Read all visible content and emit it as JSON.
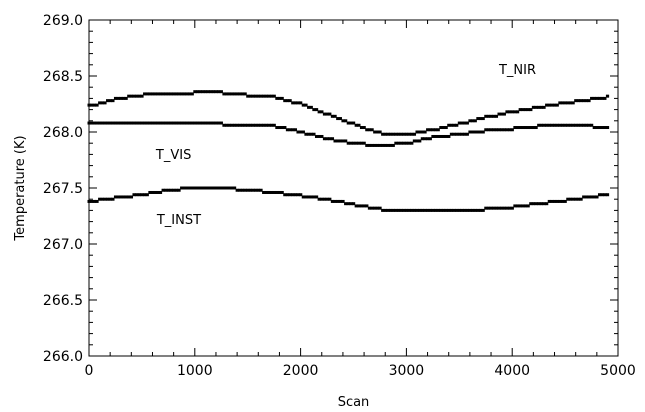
{
  "chart_data": {
    "type": "scatter",
    "title": "",
    "xlabel": "Scan",
    "ylabel": "Temperature (K)",
    "xlim": [
      0,
      5000
    ],
    "ylim": [
      266.0,
      269.0
    ],
    "x_ticks": [
      0,
      1000,
      2000,
      3000,
      4000,
      5000
    ],
    "y_ticks": [
      266.0,
      266.5,
      267.0,
      267.5,
      268.0,
      268.5,
      269.0
    ],
    "x_tick_labels": [
      "0",
      "1000",
      "2000",
      "3000",
      "4000",
      "5000"
    ],
    "y_tick_labels": [
      "266.0",
      "266.5",
      "267.0",
      "267.5",
      "268.0",
      "268.5",
      "269.0"
    ],
    "grid": false,
    "legend": "none",
    "series": [
      {
        "label": "T_NIR",
        "color": "#000000",
        "x": [
          0,
          250,
          500,
          750,
          1000,
          1250,
          1500,
          1750,
          2000,
          2250,
          2500,
          2750,
          3000,
          3250,
          3500,
          3750,
          4000,
          4250,
          4500,
          4750,
          4900
        ],
        "y": [
          268.23,
          268.29,
          268.33,
          268.34,
          268.35,
          268.35,
          268.33,
          268.31,
          268.25,
          268.16,
          268.07,
          267.99,
          267.97,
          268.02,
          268.07,
          268.13,
          268.18,
          268.22,
          268.26,
          268.29,
          268.31
        ]
      },
      {
        "label": "T_VIS",
        "color": "#000000",
        "x": [
          0,
          250,
          500,
          750,
          1000,
          1250,
          1500,
          1750,
          2000,
          2250,
          2500,
          2750,
          3000,
          3250,
          3500,
          3750,
          4000,
          4250,
          4500,
          4750,
          4900
        ],
        "y": [
          268.07,
          268.08,
          268.08,
          268.08,
          268.07,
          268.07,
          268.06,
          268.05,
          268.0,
          267.94,
          267.9,
          267.88,
          267.9,
          267.95,
          267.98,
          268.01,
          268.03,
          268.05,
          268.06,
          268.05,
          268.04
        ]
      },
      {
        "label": "T_INST",
        "color": "#000000",
        "x": [
          0,
          250,
          500,
          750,
          1000,
          1250,
          1500,
          1750,
          2000,
          2250,
          2500,
          2750,
          3000,
          3250,
          3500,
          3750,
          4000,
          4250,
          4500,
          4750,
          4900
        ],
        "y": [
          267.38,
          267.41,
          267.44,
          267.48,
          267.5,
          267.5,
          267.48,
          267.46,
          267.43,
          267.4,
          267.35,
          267.31,
          267.29,
          267.29,
          267.3,
          267.31,
          267.33,
          267.36,
          267.39,
          267.42,
          267.44
        ]
      }
    ],
    "annotations": [
      {
        "text": "T_NIR",
        "x": 4050,
        "y": 268.52
      },
      {
        "text": "T_VIS",
        "x": 800,
        "y": 267.76
      },
      {
        "text": "T_INST",
        "x": 850,
        "y": 267.18
      }
    ]
  }
}
